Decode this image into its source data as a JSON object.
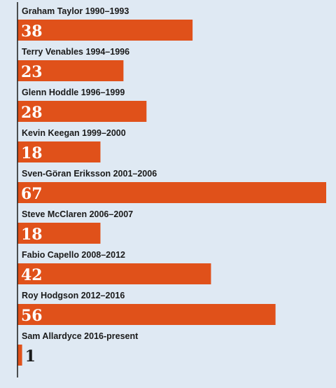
{
  "chart_data": {
    "type": "bar",
    "orientation": "horizontal",
    "categories": [
      "Graham Taylor 1990–1993",
      "Terry Venables 1994–1996",
      "Glenn Hoddle 1996–1999",
      "Kevin Keegan 1999–2000",
      "Sven-Göran Eriksson 2001–2006",
      "Steve McClaren 2006–2007",
      "Fabio Capello 2008–2012",
      "Roy Hodgson 2012–2016",
      "Sam Allardyce 2016-present"
    ],
    "values": [
      38,
      23,
      28,
      18,
      67,
      18,
      42,
      56,
      1
    ],
    "data_labels": [
      "38",
      "23",
      "28",
      "18",
      "67",
      "18",
      "42",
      "56",
      "1"
    ],
    "xlim": [
      0,
      67
    ],
    "grid": false,
    "legend": "none",
    "colors": {
      "background": "#dfe9f3",
      "bar": "#e0511a",
      "value_text_on_bar": "#ffffff",
      "value_text_outside": "#1a1a1a",
      "label_text": "#1a1a1a",
      "axis_line": "#1a1a1a"
    }
  }
}
